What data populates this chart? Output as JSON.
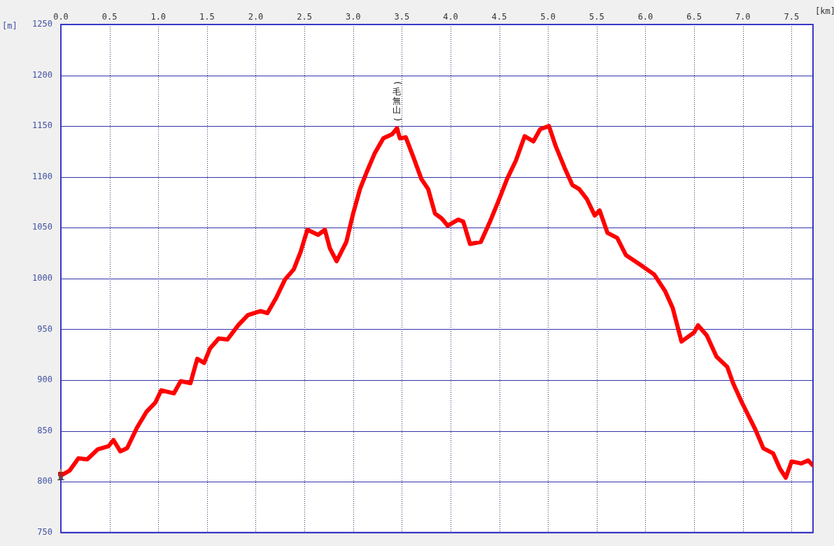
{
  "chart_data": {
    "type": "line",
    "xlabel": "[km]",
    "ylabel": "[m]",
    "x": [
      0,
      0.09,
      0.18,
      0.27,
      0.38,
      0.49,
      0.54,
      0.61,
      0.68,
      0.78,
      0.88,
      0.97,
      1.03,
      1.16,
      1.23,
      1.33,
      1.4,
      1.47,
      1.53,
      1.62,
      1.71,
      1.82,
      1.92,
      2.05,
      2.12,
      2.21,
      2.3,
      2.39,
      2.46,
      2.53,
      2.64,
      2.71,
      2.76,
      2.83,
      2.93,
      3.0,
      3.07,
      3.14,
      3.22,
      3.31,
      3.4,
      3.45,
      3.48,
      3.54,
      3.62,
      3.7,
      3.77,
      3.84,
      3.91,
      3.97,
      4.08,
      4.13,
      4.2,
      4.31,
      4.4,
      4.49,
      4.58,
      4.67,
      4.76,
      4.85,
      4.92,
      5.01,
      5.08,
      5.17,
      5.25,
      5.32,
      5.4,
      5.48,
      5.53,
      5.61,
      5.71,
      5.8,
      5.94,
      6.09,
      6.2,
      6.28,
      6.37,
      6.5,
      6.54,
      6.63,
      6.73,
      6.84,
      6.9,
      6.99,
      7.13,
      7.21,
      7.31,
      7.38,
      7.44,
      7.5,
      7.6,
      7.67,
      7.72
    ],
    "series": [
      {
        "color": "#ff0000",
        "values": [
          806,
          811,
          823,
          822,
          832,
          835,
          841,
          830,
          833,
          853,
          869,
          878,
          890,
          887,
          899,
          897,
          921,
          917,
          931,
          941,
          940,
          954,
          964,
          968,
          966,
          981,
          999,
          1009,
          1026,
          1048,
          1043,
          1048,
          1030,
          1017,
          1036,
          1064,
          1088,
          1105,
          1123,
          1138,
          1142,
          1148,
          1138,
          1139,
          1119,
          1098,
          1088,
          1064,
          1059,
          1052,
          1058,
          1056,
          1034,
          1036,
          1055,
          1076,
          1098,
          1116,
          1140,
          1135,
          1147,
          1150,
          1130,
          1109,
          1092,
          1088,
          1078,
          1062,
          1067,
          1045,
          1040,
          1023,
          1014,
          1004,
          988,
          971,
          938,
          947,
          954,
          944,
          923,
          913,
          897,
          878,
          851,
          833,
          828,
          813,
          804,
          820,
          818,
          821,
          816
        ]
      }
    ],
    "xlim": [
      0,
      7.72
    ],
    "xticks": [
      {
        "value": 0,
        "label": "0.0"
      },
      0.5,
      {
        "value": 1,
        "label": "1.0"
      },
      1.5,
      {
        "value": 2,
        "label": "2.0"
      },
      2.5,
      {
        "value": 3,
        "label": "3.0"
      },
      3.5,
      {
        "value": 4,
        "label": "4.0"
      },
      4.5,
      {
        "value": 5,
        "label": "5.0"
      },
      5.5,
      {
        "value": 6,
        "label": "6.0"
      },
      6.5,
      {
        "value": 7,
        "label": "7.0"
      },
      7.5
    ],
    "ylim": [
      750,
      1250
    ],
    "yticks": [
      750,
      800,
      850,
      900,
      950,
      1000,
      1050,
      1100,
      1150,
      1200,
      1250
    ],
    "grid": true,
    "legend": false,
    "marker": "none",
    "line_style": "solid",
    "annotations": [
      {
        "text": "(毛無山)",
        "x": 3.45,
        "y": 1148
      }
    ]
  }
}
